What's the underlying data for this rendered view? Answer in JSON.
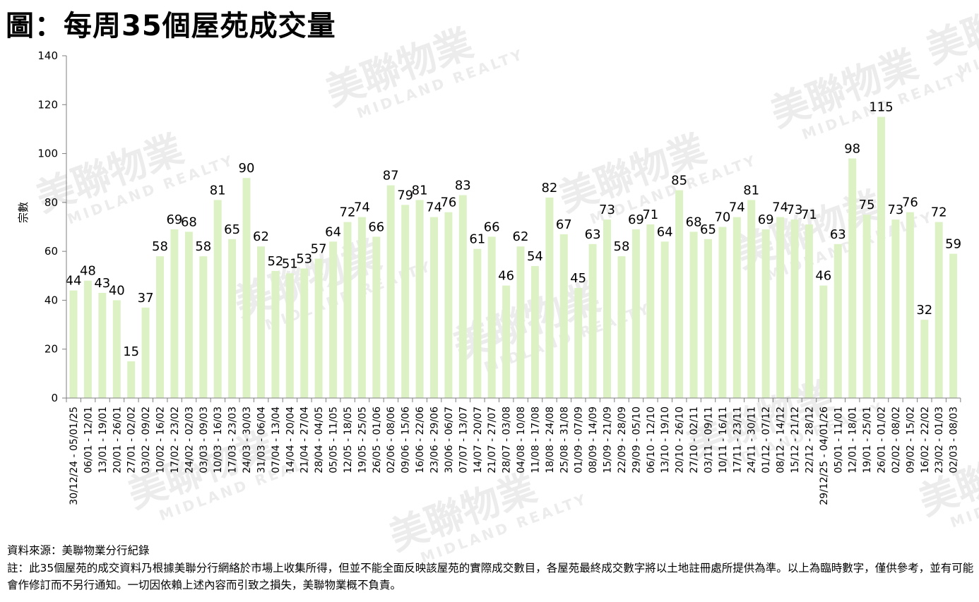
{
  "title": "圖：每周35個屋苑成交量",
  "source": "資料來源：美聯物業分行紀錄",
  "note": "註：此35個屋苑的成交資料乃根據美聯分行網絡於市場上收集所得，但並不能全面反映該屋苑的實際成交數目，各屋苑最終成交數字將以土地註冊處所提供為準。以上為臨時數字，僅供參考，並有可能會作修訂而不另行通知。一切因依賴上述內容而引致之損失，美聯物業概不負責。",
  "watermark": {
    "brand": "美聯物業",
    "sub": "MIDLAND REALTY"
  },
  "colors": {
    "bar": "#dcf2c4",
    "axis": "#7f7f7f",
    "watermark": "#ececec"
  },
  "chart_data": {
    "type": "bar",
    "ylabel": "宗數",
    "xlabel": "",
    "ylim": [
      0,
      140
    ],
    "yticks": [
      0,
      20,
      40,
      60,
      80,
      100,
      120,
      140
    ],
    "grid": false,
    "categories": [
      "30/12/24 - 05/01/25",
      "06/01 - 12/01",
      "13/01 - 19/01",
      "20/01 - 26/01",
      "27/01 - 02/02",
      "03/02 - 09/02",
      "10/02 - 16/02",
      "17/02 - 23/02",
      "24/02 - 02/03",
      "03/03 - 09/03",
      "10/03 - 16/03",
      "17/03 - 23/03",
      "24/03 - 30/03",
      "31/03 - 06/04",
      "07/04 - 13/04",
      "14/04 - 20/04",
      "21/04 - 27/04",
      "28/04 - 04/05",
      "05/05 - 11/05",
      "12/05 - 18/05",
      "19/05 - 25/05",
      "26/05 - 01/06",
      "02/06 - 08/06",
      "09/06 - 15/06",
      "16/06 - 22/06",
      "23/06 - 29/06",
      "30/06 - 06/07",
      "07/07 - 13/07",
      "14/07 - 20/07",
      "21/07 - 27/07",
      "28/07 - 03/08",
      "04/08 - 10/08",
      "11/08 - 17/08",
      "18/08 - 24/08",
      "25/08 - 31/08",
      "01/09 - 07/09",
      "08/09 - 14/09",
      "15/09 - 21/09",
      "22/09 - 28/09",
      "29/09 - 05/10",
      "06/10 - 12/10",
      "13/10 - 19/10",
      "20/10 - 26/10",
      "27/10 - 02/11",
      "03/11 - 09/11",
      "10/11 - 16/11",
      "17/11 - 23/11",
      "24/11 - 30/11",
      "01/12 - 07/12",
      "08/12 - 14/12",
      "15/12 - 21/12",
      "22/12 - 28/12",
      "29/12/25 - 04/01/26",
      "05/01 - 11/01",
      "12/01 - 18/01",
      "19/01 - 25/01",
      "26/01 - 01/02",
      "02/02 - 08/02",
      "09/02 - 15/02",
      "16/02 - 22/02",
      "23/02 - 01/03",
      "02/03 - 08/03"
    ],
    "values": [
      44,
      48,
      43,
      40,
      15,
      37,
      58,
      69,
      68,
      58,
      81,
      65,
      90,
      62,
      52,
      51,
      53,
      57,
      64,
      72,
      74,
      66,
      87,
      79,
      81,
      74,
      76,
      83,
      61,
      66,
      46,
      62,
      54,
      82,
      67,
      45,
      63,
      73,
      58,
      69,
      71,
      64,
      85,
      68,
      65,
      70,
      74,
      81,
      69,
      74,
      73,
      71,
      46,
      63,
      98,
      75,
      115,
      73,
      76,
      32,
      72,
      59
    ]
  }
}
